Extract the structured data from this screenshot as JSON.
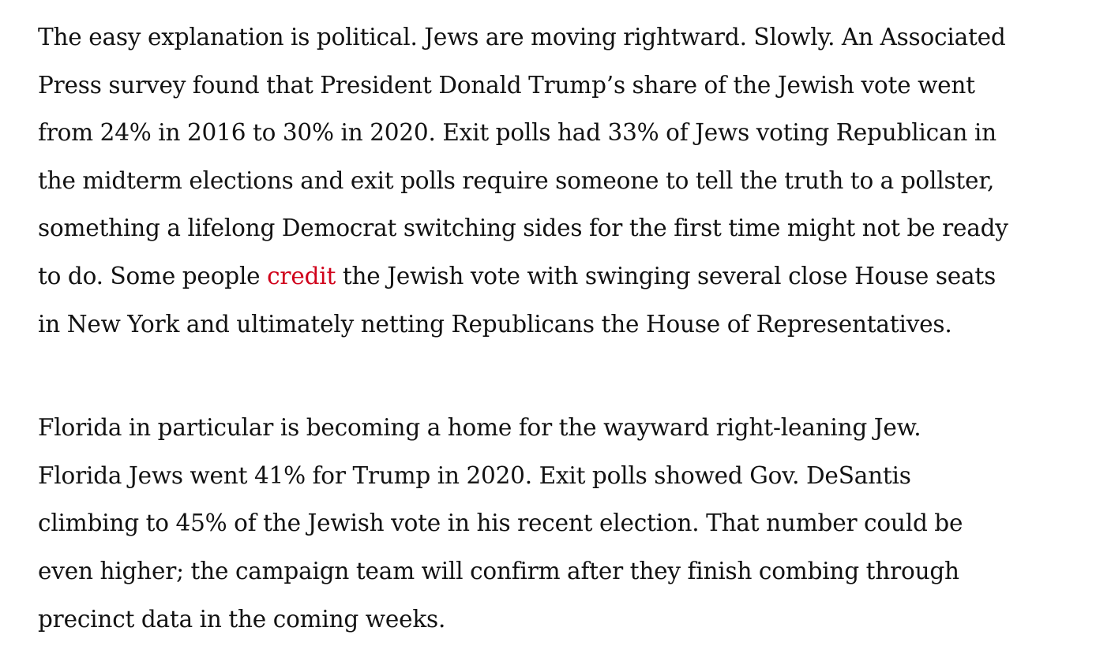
{
  "article": {
    "paragraph_1": {
      "lines": [
        "The easy explanation is political. Jews are moving rightward. Slowly. An Associated",
        "Press survey found that President Donald Trump’s share of the Jewish vote went",
        "from 24% in 2016 to 30% in 2020. Exit polls had 33% of Jews voting Republican in",
        "the midterm elections and exit polls require someone to tell the truth to a pollster,",
        "something a lifelong Democrat switching sides for the first time might not be ready"
      ],
      "line_6_before_link": "to do. Some people ",
      "link_text": "credit",
      "line_6_after_link": " the Jewish vote with swinging several close House seats",
      "line_7": "in New York and ultimately netting Republicans the House of Representatives."
    },
    "paragraph_2": {
      "lines": [
        "Florida in particular is becoming a home for the wayward right-leaning Jew.",
        "Florida Jews went 41% for Trump in 2020. Exit polls showed Gov. DeSantis",
        "climbing to 45% of the Jewish vote in his recent election. That number could be",
        "even higher; the campaign team will confirm after they finish combing through",
        "precinct data in the coming weeks."
      ]
    }
  },
  "colors": {
    "text": "#121212",
    "link": "#d0021b",
    "background": "#ffffff"
  }
}
